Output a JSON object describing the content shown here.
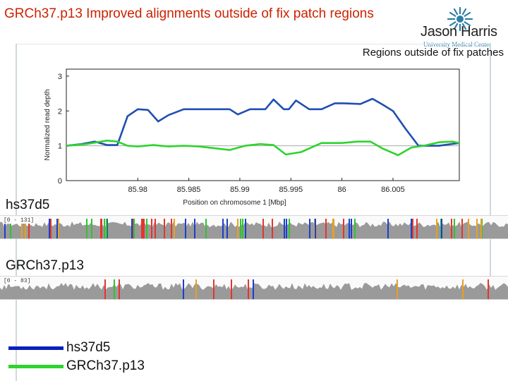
{
  "slide": {
    "title": "GRCh37.p13 Improved alignments outside of fix patch regions",
    "subtitle": "Regions outside of fix patches",
    "logo_name": "Jason Harris",
    "logo_sub": "University Medical Center"
  },
  "colors": {
    "title": "#cc2200",
    "hs37d5": "#1a4db3",
    "grch37": "#2ed42e",
    "accent": "#2d7fa5"
  },
  "tracks": [
    {
      "label": "hs37d5",
      "range": "[0 - 131]"
    },
    {
      "label": "GRCh37.p13",
      "range": "[0 - 83]"
    }
  ],
  "legend": [
    {
      "label": "hs37d5",
      "color": "#0a1fbf"
    },
    {
      "label": "GRCh37.p13",
      "color": "#2ed42e"
    }
  ],
  "chart_data": {
    "type": "line",
    "title": "",
    "xlabel": "Position on chromosome 1 [Mbp]",
    "ylabel": "Normalized read depth",
    "xlim": [
      85.973,
      86.0115
    ],
    "ylim": [
      0,
      3.2
    ],
    "xticks": [
      85.98,
      85.985,
      85.99,
      85.995,
      86,
      86.005
    ],
    "xtick_labels": [
      "85.98",
      "85.985",
      "85.99",
      "85.995",
      "86",
      "86.005"
    ],
    "yticks": [
      0,
      1,
      2,
      3
    ],
    "ytick_labels": [
      "0",
      "1",
      "2",
      "3"
    ],
    "grid": false,
    "reference_line": 1,
    "series": [
      {
        "name": "hs37d5",
        "color": "#1f4fb0",
        "x": [
          85.973,
          85.9745,
          85.9758,
          85.977,
          85.978,
          85.979,
          85.98,
          85.981,
          85.982,
          85.983,
          85.9845,
          85.986,
          85.9875,
          85.989,
          85.9898,
          85.991,
          85.9925,
          85.9933,
          85.9943,
          85.9948,
          85.9955,
          85.9968,
          85.998,
          85.9993,
          86.0002,
          86.0018,
          86.003,
          86.004,
          86.005,
          86.0062,
          86.0075,
          86.0095,
          86.0115
        ],
        "y": [
          1.0,
          1.05,
          1.12,
          1.02,
          1.02,
          1.85,
          2.05,
          2.03,
          1.7,
          1.88,
          2.05,
          2.05,
          2.05,
          2.05,
          1.9,
          2.05,
          2.05,
          2.33,
          2.05,
          2.05,
          2.3,
          2.05,
          2.05,
          2.22,
          2.22,
          2.2,
          2.35,
          2.18,
          2.0,
          1.5,
          1.0,
          1.0,
          1.08
        ]
      },
      {
        "name": "GRCh37.p13",
        "color": "#2ed42e",
        "x": [
          85.973,
          85.975,
          85.977,
          85.978,
          85.979,
          85.98,
          85.9815,
          85.983,
          85.9845,
          85.986,
          85.9875,
          85.989,
          85.9905,
          85.992,
          85.9933,
          85.9945,
          85.996,
          85.998,
          86.0,
          86.0015,
          86.0028,
          86.004,
          86.0055,
          86.0068,
          86.008,
          86.0095,
          86.0108,
          86.0115
        ],
        "y": [
          1.0,
          1.05,
          1.15,
          1.12,
          1.0,
          0.98,
          1.02,
          0.98,
          1.0,
          0.98,
          0.93,
          0.88,
          1.0,
          1.05,
          1.02,
          0.75,
          0.82,
          1.08,
          1.08,
          1.12,
          1.12,
          0.92,
          0.73,
          0.95,
          1.0,
          1.1,
          1.12,
          1.08
        ]
      }
    ]
  }
}
